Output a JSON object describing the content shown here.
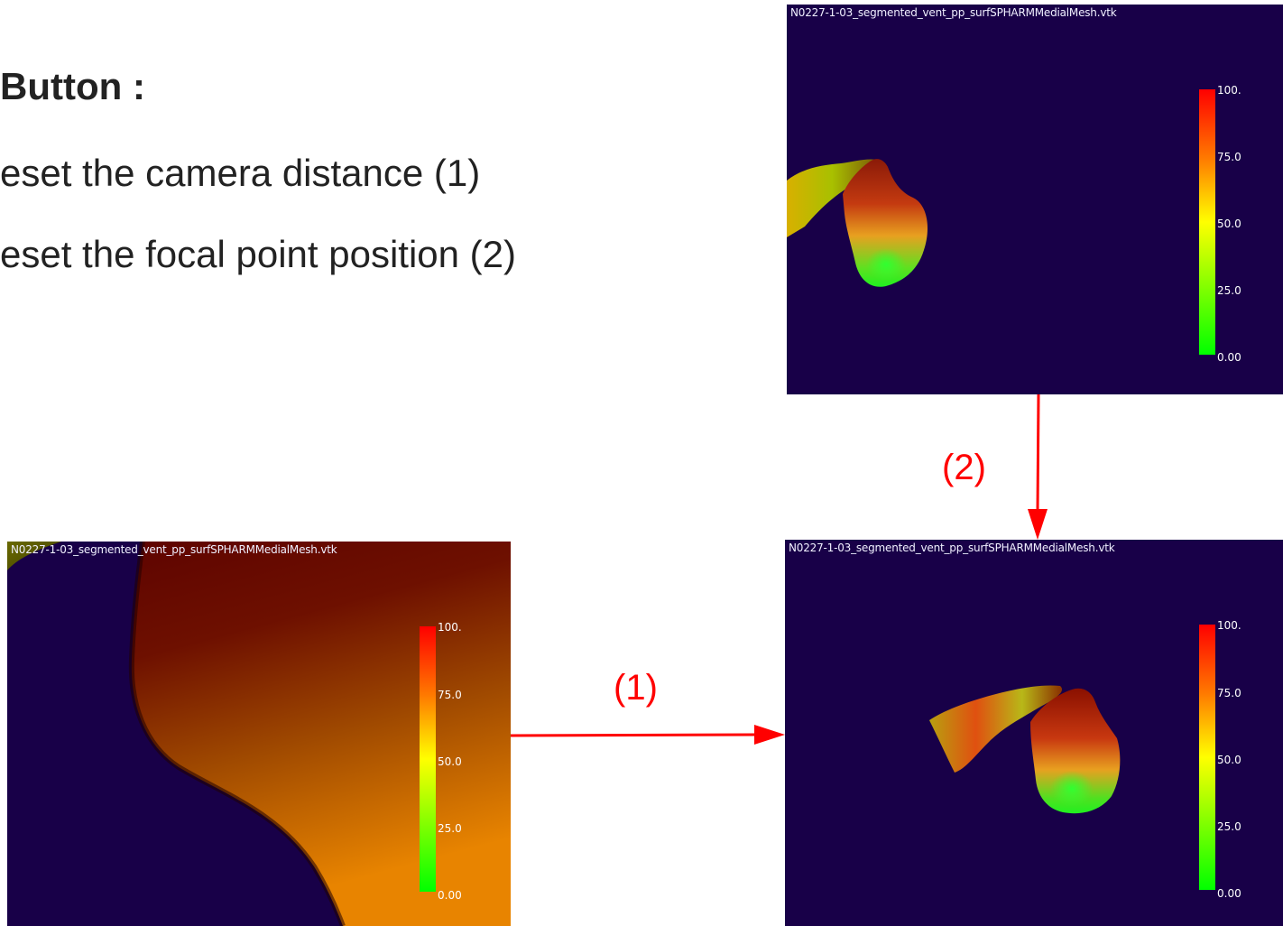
{
  "instructions": {
    "heading": "Button :",
    "items": [
      "eset the camera distance (1)",
      "eset the focal point position (2)"
    ]
  },
  "viewers": [
    {
      "title": "N0227-1-03_segmented_vent_pp_surfSPHARMMedialMesh.vtk",
      "view": "reset-focal-point-input",
      "colorbar_ticks": [
        "100.",
        "75.0",
        "50.0",
        "25.0",
        "0.00"
      ]
    },
    {
      "title": "N0227-1-03_segmented_vent_pp_surfSPHARMMedialMesh.vtk",
      "view": "zoomed-in",
      "colorbar_ticks": [
        "100.",
        "75.0",
        "50.0",
        "25.0",
        "0.00"
      ]
    },
    {
      "title": "N0227-1-03_segmented_vent_pp_surfSPHARMMedialMesh.vtk",
      "view": "reset-result",
      "colorbar_ticks": [
        "100.",
        "75.0",
        "50.0",
        "25.0",
        "0.00"
      ]
    }
  ],
  "arrows": {
    "arrow_1_label": "(1)",
    "arrow_2_label": "(2)"
  },
  "colors": {
    "viewer_background": "#180048",
    "arrow": "#ff0000",
    "colorbar_max": "#ff0000",
    "colorbar_mid": "#ffff00",
    "colorbar_min": "#00ff00"
  }
}
